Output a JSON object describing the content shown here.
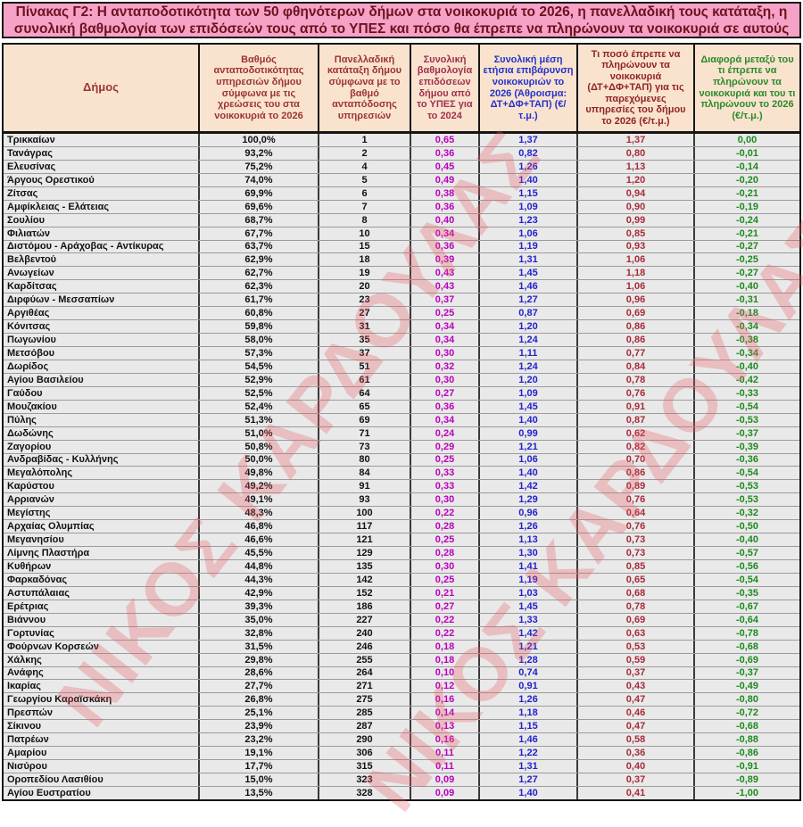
{
  "title": "Πίνακας Γ2: Η ανταποδοτικότητα των 50 φθηνότερων δήμων στα νοικοκυριά το 2026, η πανελλαδική τους κατάταξη, η συνολική βαθμολογία των επιδόσεών τους από το ΥΠΕΣ και πόσο θα έπρεπε να πληρώνουν τα νοικοκυριά σε αυτούς",
  "watermark": {
    "text": "ΝΙΚΟΣ ΚΑΡΔΟΥΛΑΣ",
    "color": "rgba(231,93,103,0.30)"
  },
  "colors": {
    "title_bg": "#F5A2C6",
    "title_text": "#6E1220",
    "header_bg": "#FAE3CE",
    "row_bg": "#E9E9E9",
    "border_black": "#151515",
    "data_black": "#111111",
    "data_magenta": "#BB00BB",
    "data_blue": "#2222CC",
    "data_darkred": "#A62B38",
    "data_green": "#1D8A1D"
  },
  "chart_data": {
    "type": "table",
    "title": "Πίνακας Γ2: Η ανταποδοτικότητα των 50 φθηνότερων δήμων στα νοικοκυριά το 2026, η πανελλαδική τους κατάταξη, η συνολική βαθμολογία των επιδόσεών τους από το ΥΠΕΣ και πόσο θα έπρεπε να πληρώνουν τα νοικοκυριά σε αυτούς",
    "columns": [
      {
        "label": "Δήμος",
        "header_color": "#9B3434",
        "data_color": "#111111",
        "align": "left"
      },
      {
        "label": "Βαθμός ανταποδοτικότητας υπηρεσιών δήμου σύμφωνα με τις χρεώσεις του στα νοικοκυριά το 2026",
        "header_color": "#9B3434",
        "data_color": "#111111",
        "align": "center"
      },
      {
        "label": "Πανελλαδική κατάταξη δήμου σύμφωνα με το βαθμό ανταπόδοσης υπηρεσιών",
        "header_color": "#9B3434",
        "data_color": "#111111",
        "align": "center"
      },
      {
        "label": "Συνολική βαθμολογία επιδόσεων δήμου από το ΥΠΕΣ για το 2024",
        "header_color": "#A03050",
        "data_color": "#BB00BB",
        "align": "center"
      },
      {
        "label": "Συνολική μέση ετήσια επιβάρυνση νοικοκυριών το 2026 (Άθροισμα: ΔΤ+ΔΦ+ΤΑΠ) (€/τ.μ.)",
        "header_color": "#2233CC",
        "data_color": "#2222CC",
        "align": "center"
      },
      {
        "label": "Τι ποσό έπρεπε να πληρώνουν τα νοικοκυριά (ΔΤ+ΔΦ+ΤΑΠ) για τις παρεχόμενες υπηρεσίες του δήμου το 2026 (€/τ.μ.)",
        "header_color": "#8F2424",
        "data_color": "#A62B38",
        "align": "center"
      },
      {
        "label": "Διαφορά μεταξύ του τι έπρεπε να πληρώνουν τα νοικοκυριά και του τι πληρώνουν το 2026 (€/τ.μ.)",
        "header_color": "#2A8B2A",
        "data_color": "#1D8A1D",
        "align": "center"
      }
    ],
    "rows": [
      [
        "Τρικκαίων",
        "100,0%",
        "1",
        "0,65",
        "1,37",
        "1,37",
        "0,00"
      ],
      [
        "Τανάγρας",
        "93,2%",
        "2",
        "0,36",
        "0,82",
        "0,80",
        "-0,01"
      ],
      [
        "Ελευσίνας",
        "75,2%",
        "4",
        "0,45",
        "1,26",
        "1,13",
        "-0,14"
      ],
      [
        "Άργους Ορεστικού",
        "74,0%",
        "5",
        "0,49",
        "1,40",
        "1,20",
        "-0,20"
      ],
      [
        "Ζίτσας",
        "69,9%",
        "6",
        "0,38",
        "1,15",
        "0,94",
        "-0,21"
      ],
      [
        "Αμφίκλειας - Ελάτειας",
        "69,6%",
        "7",
        "0,36",
        "1,09",
        "0,90",
        "-0,19"
      ],
      [
        "Σουλίου",
        "68,7%",
        "8",
        "0,40",
        "1,23",
        "0,99",
        "-0,24"
      ],
      [
        "Φιλιατών",
        "67,7%",
        "10",
        "0,34",
        "1,06",
        "0,85",
        "-0,21"
      ],
      [
        "Διστόμου - Αράχοβας - Αντίκυρας",
        "63,7%",
        "15",
        "0,36",
        "1,19",
        "0,93",
        "-0,27"
      ],
      [
        "Βελβεντού",
        "62,9%",
        "18",
        "0,39",
        "1,31",
        "1,06",
        "-0,25"
      ],
      [
        "Ανωγείων",
        "62,7%",
        "19",
        "0,43",
        "1,45",
        "1,18",
        "-0,27"
      ],
      [
        "Καρδίτσας",
        "62,3%",
        "20",
        "0,43",
        "1,46",
        "1,06",
        "-0,40"
      ],
      [
        "Διρφύων - Μεσσαπίων",
        "61,7%",
        "23",
        "0,37",
        "1,27",
        "0,96",
        "-0,31"
      ],
      [
        "Αργιθέας",
        "60,8%",
        "27",
        "0,25",
        "0,87",
        "0,69",
        "-0,18"
      ],
      [
        "Κόνιτσας",
        "59,8%",
        "31",
        "0,34",
        "1,20",
        "0,86",
        "-0,34"
      ],
      [
        "Πωγωνίου",
        "58,0%",
        "35",
        "0,34",
        "1,24",
        "0,86",
        "-0,38"
      ],
      [
        "Μετσόβου",
        "57,3%",
        "37",
        "0,30",
        "1,11",
        "0,77",
        "-0,34"
      ],
      [
        "Δωρίδος",
        "54,5%",
        "51",
        "0,32",
        "1,24",
        "0,84",
        "-0,40"
      ],
      [
        "Αγίου Βασιλείου",
        "52,9%",
        "61",
        "0,30",
        "1,20",
        "0,78",
        "-0,42"
      ],
      [
        "Γαύδου",
        "52,5%",
        "64",
        "0,27",
        "1,09",
        "0,76",
        "-0,33"
      ],
      [
        "Μουζακίου",
        "52,4%",
        "65",
        "0,36",
        "1,45",
        "0,91",
        "-0,54"
      ],
      [
        "Πύλης",
        "51,3%",
        "69",
        "0,34",
        "1,40",
        "0,87",
        "-0,53"
      ],
      [
        "Δωδώνης",
        "51,0%",
        "71",
        "0,24",
        "0,99",
        "0,62",
        "-0,37"
      ],
      [
        "Ζαγορίου",
        "50,8%",
        "73",
        "0,29",
        "1,21",
        "0,82",
        "-0,39"
      ],
      [
        "Ανδραβίδας - Κυλλήνης",
        "50,0%",
        "80",
        "0,25",
        "1,06",
        "0,70",
        "-0,36"
      ],
      [
        "Μεγαλόπολης",
        "49,8%",
        "84",
        "0,33",
        "1,40",
        "0,86",
        "-0,54"
      ],
      [
        "Καρύστου",
        "49,2%",
        "91",
        "0,33",
        "1,42",
        "0,89",
        "-0,53"
      ],
      [
        "Αρριανών",
        "49,1%",
        "93",
        "0,30",
        "1,29",
        "0,76",
        "-0,53"
      ],
      [
        "Μεγίστης",
        "48,3%",
        "100",
        "0,22",
        "0,96",
        "0,64",
        "-0,32"
      ],
      [
        "Αρχαίας Ολυμπίας",
        "46,8%",
        "117",
        "0,28",
        "1,26",
        "0,76",
        "-0,50"
      ],
      [
        "Μεγανησίου",
        "46,6%",
        "121",
        "0,25",
        "1,13",
        "0,73",
        "-0,40"
      ],
      [
        "Λίμνης Πλαστήρα",
        "45,5%",
        "129",
        "0,28",
        "1,30",
        "0,73",
        "-0,57"
      ],
      [
        "Κυθήρων",
        "44,8%",
        "135",
        "0,30",
        "1,41",
        "0,85",
        "-0,56"
      ],
      [
        "Φαρκαδόνας",
        "44,3%",
        "142",
        "0,25",
        "1,19",
        "0,65",
        "-0,54"
      ],
      [
        "Αστυπάλαιας",
        "42,9%",
        "152",
        "0,21",
        "1,03",
        "0,68",
        "-0,35"
      ],
      [
        "Ερέτριας",
        "39,3%",
        "186",
        "0,27",
        "1,45",
        "0,78",
        "-0,67"
      ],
      [
        "Βιάννου",
        "35,0%",
        "227",
        "0,22",
        "1,33",
        "0,69",
        "-0,64"
      ],
      [
        "Γορτυνίας",
        "32,8%",
        "240",
        "0,22",
        "1,42",
        "0,63",
        "-0,78"
      ],
      [
        "Φούρνων Κορσεών",
        "31,5%",
        "246",
        "0,18",
        "1,21",
        "0,53",
        "-0,68"
      ],
      [
        "Χάλκης",
        "29,8%",
        "255",
        "0,18",
        "1,28",
        "0,59",
        "-0,69"
      ],
      [
        "Ανάφης",
        "28,6%",
        "264",
        "0,10",
        "0,74",
        "0,37",
        "-0,37"
      ],
      [
        "Ικαρίας",
        "27,7%",
        "271",
        "0,12",
        "0,91",
        "0,43",
        "-0,49"
      ],
      [
        "Γεωργίου Καραϊσκάκη",
        "26,8%",
        "275",
        "0,16",
        "1,26",
        "0,47",
        "-0,80"
      ],
      [
        "Πρεσπών",
        "25,1%",
        "285",
        "0,14",
        "1,18",
        "0,46",
        "-0,72"
      ],
      [
        "Σίκινου",
        "23,9%",
        "287",
        "0,13",
        "1,15",
        "0,47",
        "-0,68"
      ],
      [
        "Πατρέων",
        "23,2%",
        "290",
        "0,16",
        "1,46",
        "0,58",
        "-0,88"
      ],
      [
        "Αμαρίου",
        "19,1%",
        "306",
        "0,11",
        "1,22",
        "0,36",
        "-0,86"
      ],
      [
        "Νισύρου",
        "17,7%",
        "315",
        "0,11",
        "1,31",
        "0,40",
        "-0,91"
      ],
      [
        "Οροπεδίου Λασιθίου",
        "15,0%",
        "323",
        "0,09",
        "1,27",
        "0,37",
        "-0,89"
      ],
      [
        "Αγίου Ευστρατίου",
        "13,5%",
        "328",
        "0,09",
        "1,40",
        "0,41",
        "-1,00"
      ]
    ]
  }
}
